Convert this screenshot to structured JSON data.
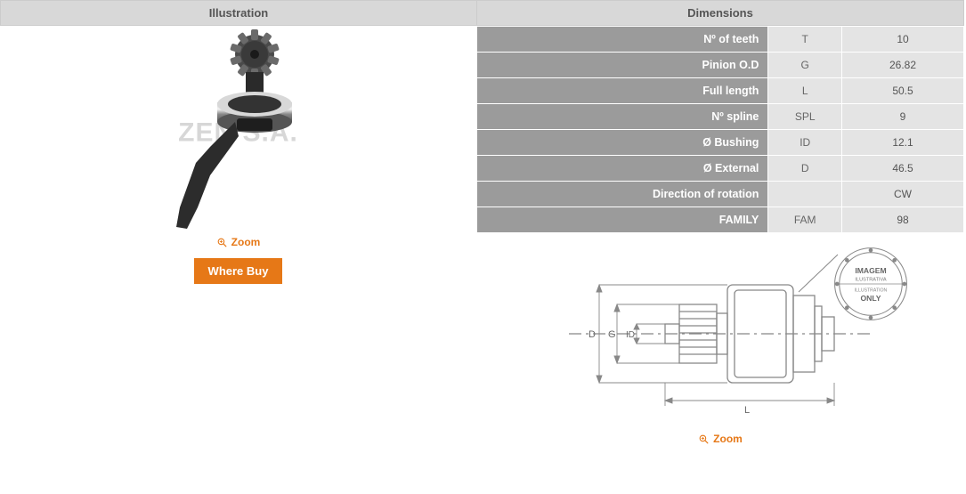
{
  "illustration": {
    "header": "Illustration",
    "watermark": "ZEN S.A.",
    "zoom_label": "Zoom",
    "where_buy_label": "Where Buy"
  },
  "dimensions": {
    "header": "Dimensions",
    "rows": [
      {
        "label": "Nº of teeth",
        "symbol": "T",
        "value": "10"
      },
      {
        "label": "Pinion O.D",
        "symbol": "G",
        "value": "26.82"
      },
      {
        "label": "Full length",
        "symbol": "L",
        "value": "50.5"
      },
      {
        "label": "Nº spline",
        "symbol": "SPL",
        "value": "9"
      },
      {
        "label": "Ø Bushing",
        "symbol": "ID",
        "value": "12.1"
      },
      {
        "label": "Ø External",
        "symbol": "D",
        "value": "46.5"
      },
      {
        "label": "Direction of rotation",
        "symbol": "",
        "value": "CW"
      },
      {
        "label": "FAMILY",
        "symbol": "FAM",
        "value": "98"
      }
    ],
    "zoom_label": "Zoom",
    "diagram": {
      "labels": {
        "D": "D",
        "G": "G",
        "ID": "ID",
        "L": "L"
      },
      "stamp": {
        "line1": "IMAGEM",
        "line2": "ILUSTRATIVA",
        "line3": "ILLUSTRATION",
        "line4": "ONLY"
      }
    }
  },
  "colors": {
    "accent": "#e67817",
    "header_bg": "#d8d8d8",
    "row_label_bg": "#9b9b9b",
    "row_cell_bg": "#e4e4e4"
  }
}
